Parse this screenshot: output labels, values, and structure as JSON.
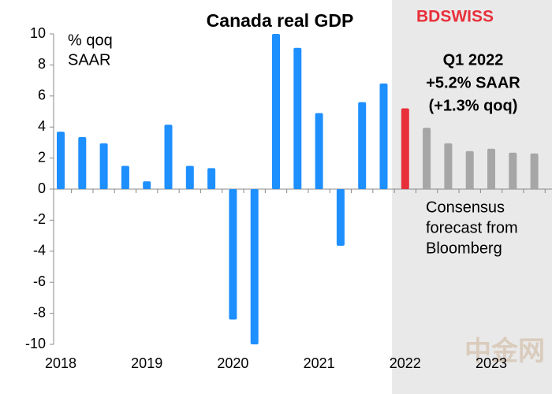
{
  "chart_data": {
    "type": "bar",
    "title": "Canada real GDP",
    "unit_label": [
      "% qoq",
      "SAAR"
    ],
    "categories": [
      "2018",
      null,
      null,
      null,
      "2019",
      null,
      null,
      null,
      "2020",
      null,
      null,
      null,
      "2021",
      null,
      null,
      null,
      "2022",
      null,
      null,
      null,
      "2023",
      null,
      null
    ],
    "series": [
      {
        "color": "#1e8fff",
        "values": [
          3.7,
          3.35,
          2.95,
          1.5,
          0.5,
          4.15,
          1.5,
          1.35,
          -8.4,
          -10,
          10,
          9.1,
          4.9,
          -3.65,
          5.6,
          6.8,
          null,
          null,
          null,
          null,
          null,
          null,
          null
        ]
      },
      {
        "color": "#e8303a",
        "values": [
          null,
          null,
          null,
          null,
          null,
          null,
          null,
          null,
          null,
          null,
          null,
          null,
          null,
          null,
          null,
          null,
          5.2,
          null,
          null,
          null,
          null,
          null,
          null
        ]
      },
      {
        "color": "#a6a6a6",
        "values": [
          null,
          null,
          null,
          null,
          null,
          null,
          null,
          null,
          null,
          null,
          null,
          null,
          null,
          null,
          null,
          null,
          null,
          3.95,
          2.95,
          2.45,
          2.6,
          2.35,
          2.3
        ]
      }
    ],
    "ylim": [
      -10,
      10
    ],
    "yticks": [
      -10,
      -8,
      -6,
      -4,
      -2,
      0,
      2,
      4,
      6,
      8,
      10
    ],
    "highlight_annotation": [
      "Q1 2022",
      "+5.2%  SAAR",
      "(+1.3%  qoq)"
    ],
    "forecast_annotation": [
      "Consensus",
      "forecast from",
      "Bloomberg"
    ],
    "forecast_shade_color": "#e9e9e9",
    "logo": "BDSWISS",
    "watermark": "中金网"
  }
}
